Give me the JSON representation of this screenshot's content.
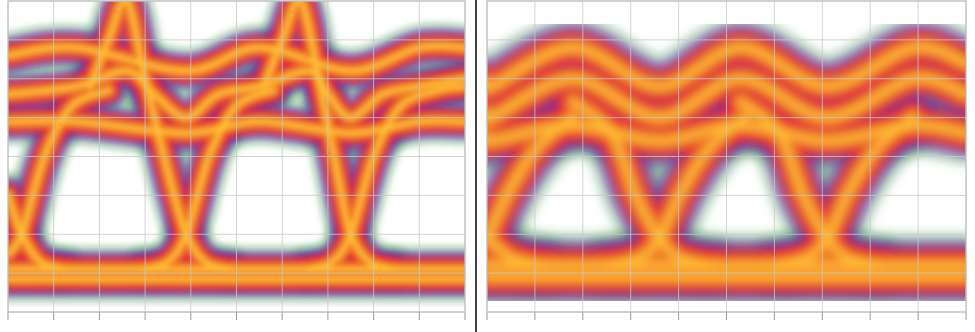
{
  "chart_data": [
    {
      "type": "line",
      "xlim": [
        0,
        10
      ],
      "ylim": [
        0,
        8
      ],
      "xticks": [
        0,
        1,
        2,
        3,
        4,
        5,
        6,
        7,
        8,
        9,
        10
      ],
      "yticks": [
        0,
        1,
        2,
        3,
        4,
        5,
        6,
        7,
        8
      ],
      "grid": true,
      "tick_labels": false,
      "series": [
        {
          "x": [
            0,
            10
          ],
          "values": [
            1.1,
            1.1
          ]
        },
        {
          "x": [
            0,
            10
          ],
          "values": [
            0.85,
            0.85
          ]
        },
        {
          "x": [
            0,
            1.5,
            2.6,
            3.2,
            3.9,
            4.6,
            5.5,
            6.6,
            7.0,
            7.5,
            8.2,
            9,
            10
          ],
          "values": [
            5.6,
            5.8,
            6.2,
            5.6,
            5.0,
            5.6,
            5.8,
            6.2,
            5.6,
            5.0,
            5.6,
            5.8,
            6.0
          ]
        },
        {
          "x": [
            0,
            1.5,
            3.9,
            5.5,
            7.5,
            9,
            10
          ],
          "values": [
            6.6,
            6.8,
            6.2,
            6.8,
            6.2,
            6.8,
            6.8
          ]
        },
        {
          "x": [
            0,
            1.5,
            3.9,
            5.5,
            7.5,
            9,
            10
          ],
          "values": [
            4.9,
            4.9,
            4.6,
            4.9,
            4.6,
            4.9,
            4.9
          ]
        },
        {
          "x": [
            1.8,
            2.2,
            2.6,
            3.0,
            3.5,
            3.9,
            4.3,
            4.8
          ],
          "values": [
            5.8,
            7.0,
            8.0,
            6.0,
            3.6,
            2.0,
            1.3,
            1.1
          ]
        },
        {
          "x": [
            3.0,
            3.5,
            3.9,
            4.4,
            5.0,
            5.8
          ],
          "values": [
            1.1,
            1.3,
            2.0,
            4.0,
            5.3,
            5.7
          ]
        },
        {
          "x": [
            5.6,
            6.0,
            6.4,
            6.8,
            7.2,
            7.5,
            7.9,
            8.4
          ],
          "values": [
            5.8,
            7.0,
            8.0,
            6.0,
            3.6,
            2.0,
            1.3,
            1.1
          ]
        },
        {
          "x": [
            6.6,
            7.1,
            7.5,
            8.0,
            8.6,
            9.4,
            10
          ],
          "values": [
            1.1,
            1.3,
            2.0,
            4.0,
            5.3,
            5.7,
            5.8
          ]
        },
        {
          "x": [
            0,
            0.3,
            0.8,
            1.4,
            2.2
          ],
          "values": [
            1.5,
            2.0,
            4.0,
            5.3,
            5.7
          ]
        },
        {
          "x": [
            0,
            0.3,
            0.7,
            1.2
          ],
          "values": [
            3.0,
            2.0,
            1.3,
            1.1
          ]
        }
      ]
    },
    {
      "type": "line",
      "xlim": [
        0,
        10
      ],
      "ylim": [
        0,
        8
      ],
      "xticks": [
        0,
        1,
        2,
        3,
        4,
        5,
        6,
        7,
        8,
        9,
        10
      ],
      "yticks": [
        0,
        1,
        2,
        3,
        4,
        5,
        6,
        7,
        8
      ],
      "grid": true,
      "tick_labels": false,
      "series": [
        {
          "x": [
            0,
            10
          ],
          "values": [
            1.2,
            1.2
          ]
        },
        {
          "x": [
            0,
            10
          ],
          "values": [
            0.9,
            0.9
          ]
        },
        {
          "x": [
            0,
            0.1,
            1.8,
            3.6,
            5.3,
            7.1,
            8.9,
            10
          ],
          "values": [
            5.1,
            5.0,
            6.0,
            5.0,
            6.0,
            5.0,
            6.0,
            5.6
          ]
        },
        {
          "x": [
            0,
            0.1,
            1.8,
            3.6,
            5.3,
            7.1,
            8.9,
            10
          ],
          "values": [
            5.9,
            5.8,
            6.8,
            5.8,
            6.8,
            5.8,
            6.8,
            6.4
          ]
        },
        {
          "x": [
            0,
            0.1,
            1.8,
            3.6,
            5.3,
            7.1,
            8.9,
            10
          ],
          "values": [
            4.5,
            4.4,
            4.8,
            4.4,
            4.8,
            4.4,
            4.8,
            4.6
          ]
        },
        {
          "x": [
            1.8,
            2.6,
            3.1,
            3.6,
            4.0,
            4.6
          ],
          "values": [
            5.4,
            4.6,
            3.0,
            1.9,
            1.4,
            1.2
          ]
        },
        {
          "x": [
            2.6,
            3.2,
            3.6,
            4.1,
            4.7,
            5.4
          ],
          "values": [
            1.2,
            1.4,
            1.9,
            3.2,
            4.3,
            5.0
          ]
        },
        {
          "x": [
            5.3,
            6.1,
            6.6,
            7.1,
            7.5,
            8.1
          ],
          "values": [
            5.4,
            4.6,
            3.0,
            1.9,
            1.4,
            1.2
          ]
        },
        {
          "x": [
            6.1,
            6.7,
            7.1,
            7.6,
            8.2,
            8.9
          ],
          "values": [
            1.2,
            1.4,
            1.9,
            3.2,
            4.3,
            5.0
          ]
        },
        {
          "x": [
            0,
            0.5,
            1.1,
            1.8
          ],
          "values": [
            1.9,
            3.2,
            4.3,
            5.0
          ]
        },
        {
          "x": [
            0,
            0.5,
            1.1
          ],
          "values": [
            1.9,
            1.4,
            1.2
          ]
        }
      ]
    }
  ]
}
